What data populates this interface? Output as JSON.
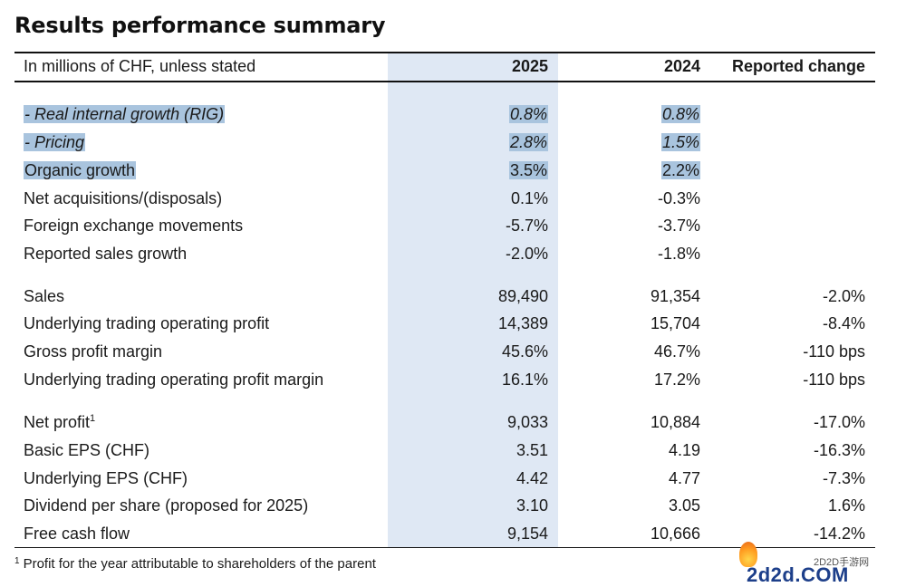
{
  "title": "Results performance summary",
  "header": {
    "label": "In millions of CHF, unless stated",
    "col_2025": "2025",
    "col_2024": "2024",
    "col_change": "Reported change"
  },
  "rows": [
    {
      "label": "- Real internal growth (RIG)",
      "v2025": "0.8%",
      "v2024": "0.8%",
      "change": ""
    },
    {
      "label": "- Pricing",
      "v2025": "2.8%",
      "v2024": "1.5%",
      "change": ""
    },
    {
      "label": "Organic growth",
      "v2025": "3.5%",
      "v2024": "2.2%",
      "change": ""
    },
    {
      "label": "Net acquisitions/(disposals)",
      "v2025": "0.1%",
      "v2024": "-0.3%",
      "change": ""
    },
    {
      "label": "Foreign exchange movements",
      "v2025": "-5.7%",
      "v2024": "-3.7%",
      "change": ""
    },
    {
      "label": "Reported sales growth",
      "v2025": "-2.0%",
      "v2024": "-1.8%",
      "change": ""
    },
    {
      "label": "Sales",
      "v2025": "89,490",
      "v2024": "91,354",
      "change": "-2.0%"
    },
    {
      "label": "Underlying trading operating profit",
      "v2025": "14,389",
      "v2024": "15,704",
      "change": "-8.4%"
    },
    {
      "label": "Gross profit margin",
      "v2025": "45.6%",
      "v2024": "46.7%",
      "change": "-110 bps"
    },
    {
      "label": "Underlying trading operating profit margin",
      "v2025": "16.1%",
      "v2024": "17.2%",
      "change": "-110 bps"
    },
    {
      "label": "Net profit",
      "label_sup": "1",
      "v2025": "9,033",
      "v2024": "10,884",
      "change": "-17.0%"
    },
    {
      "label": "Basic EPS (CHF)",
      "v2025": "3.51",
      "v2024": "4.19",
      "change": "-16.3%"
    },
    {
      "label": "Underlying EPS (CHF)",
      "v2025": "4.42",
      "v2024": "4.77",
      "change": "-7.3%"
    },
    {
      "label": "Dividend per share (proposed for 2025)",
      "v2025": "3.10",
      "v2024": "3.05",
      "change": "1.6%"
    },
    {
      "label": "Free cash flow",
      "v2025": "9,154",
      "v2024": "10,666",
      "change": "-14.2%"
    }
  ],
  "footnote": {
    "mark": "1",
    "text": "Profit for the year attributable to shareholders of the parent"
  },
  "watermark": {
    "sub": "2D2D手游网",
    "main": "2d2d.COM"
  },
  "colors": {
    "column_highlight": "#dfe8f4",
    "text_highlight": "#a9c4de"
  }
}
